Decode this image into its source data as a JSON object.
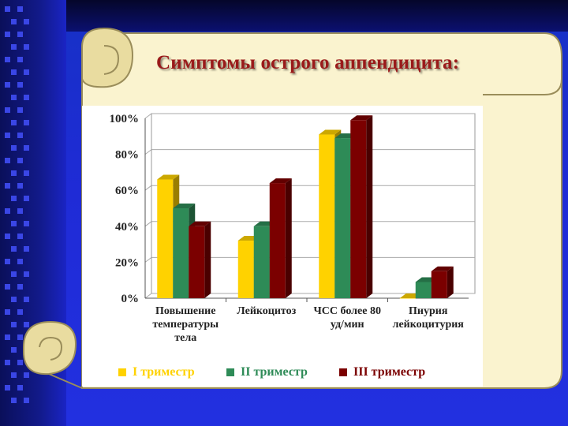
{
  "slide": {
    "title": "Симптомы острого аппендицита:"
  },
  "colors": {
    "background": "#1f2bd6",
    "scroll": "#faf3cf",
    "title": "#9a1a1a",
    "series1": "#ffd200",
    "series2": "#2e8b57",
    "series3": "#7b0000"
  },
  "chart_data": {
    "type": "bar",
    "title": "",
    "categories": [
      "Повышение температуры тела",
      "Лейкоцитоз",
      "ЧСС более 80 уд/мин",
      "Пиурия лейкоцитурия"
    ],
    "category_lines": [
      [
        "Повышение",
        "температуры",
        "тела"
      ],
      [
        "Лейкоцитоз"
      ],
      [
        "ЧСС более   80",
        "уд/мин"
      ],
      [
        "Пиурия",
        "лейкоцитурия"
      ]
    ],
    "series": [
      {
        "name": "I триместр",
        "values": [
          66,
          32,
          91,
          0
        ]
      },
      {
        "name": "II триместр",
        "values": [
          50,
          40,
          89,
          9
        ]
      },
      {
        "name": "III триместр",
        "values": [
          40,
          64,
          99,
          15
        ]
      }
    ],
    "yticks": [
      "0%",
      "20%",
      "40%",
      "60%",
      "80%",
      "100%"
    ],
    "ylim": [
      0,
      100
    ],
    "grid": true,
    "legend_position": "bottom",
    "style": "3d"
  }
}
